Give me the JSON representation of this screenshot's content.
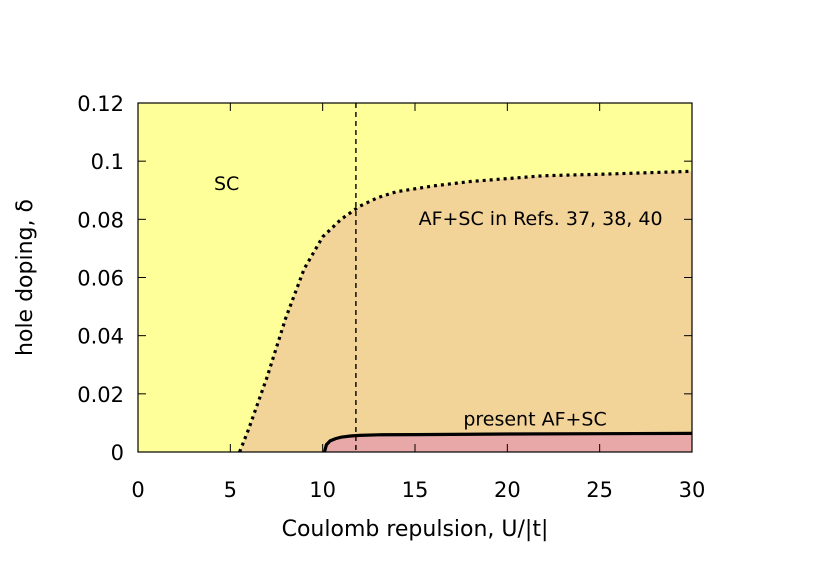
{
  "chart_data": {
    "type": "area",
    "xlabel": "Coulomb repulsion, U/|t|",
    "ylabel": "hole doping, δ",
    "xlim": [
      0,
      30
    ],
    "ylim": [
      0,
      0.12
    ],
    "xticks": [
      "0",
      "5",
      "10",
      "15",
      "20",
      "25",
      "30"
    ],
    "yticks": [
      "0",
      "0.02",
      "0.04",
      "0.06",
      "0.08",
      "0.1",
      "0.12"
    ],
    "grid": false,
    "regions": [
      {
        "label": "SC",
        "color": "#ffff99"
      },
      {
        "label": "AF+SC in Refs. 37, 38, 40",
        "color": "#f2d398"
      },
      {
        "label": "present AF+SC",
        "color": "#e8a8a8"
      }
    ],
    "series": [
      {
        "name": "AF+SC in Refs. 37, 38, 40",
        "style": "dotted",
        "x": [
          5.5,
          6,
          7,
          8,
          9,
          10,
          11,
          12,
          13,
          14,
          16,
          18,
          20,
          22,
          25,
          30
        ],
        "y": [
          0,
          0.008,
          0.026,
          0.046,
          0.063,
          0.074,
          0.08,
          0.0845,
          0.0875,
          0.0895,
          0.0915,
          0.093,
          0.094,
          0.095,
          0.0955,
          0.0965
        ]
      },
      {
        "name": "present AF+SC",
        "style": "solid",
        "x": [
          10.1,
          10.2,
          10.4,
          10.7,
          11.0,
          11.5,
          12,
          13,
          15,
          20,
          25,
          30
        ],
        "y": [
          0,
          0.0025,
          0.0038,
          0.0046,
          0.0051,
          0.0055,
          0.0057,
          0.0059,
          0.006,
          0.0062,
          0.0063,
          0.0064
        ]
      }
    ],
    "vline": {
      "x": 11.8,
      "style": "dashed"
    },
    "annotations": [
      {
        "text": "SC",
        "x": 4.8,
        "y": 0.0925
      },
      {
        "text": "AF+SC in Refs. 37, 38, 40",
        "x": 21.8,
        "y": 0.0805
      },
      {
        "text": "present AF+SC",
        "x": 21.5,
        "y": 0.0115
      }
    ]
  }
}
